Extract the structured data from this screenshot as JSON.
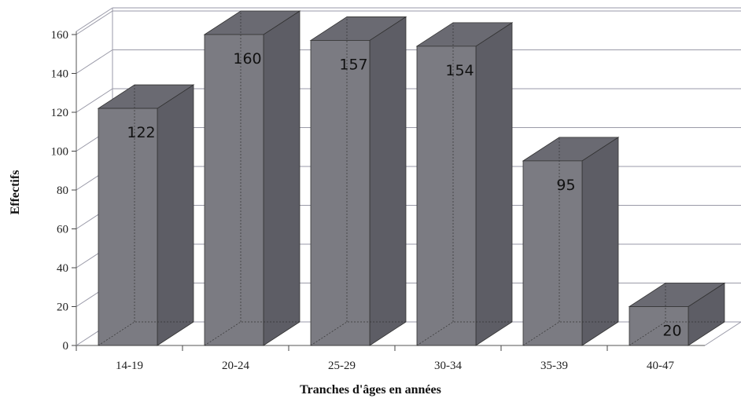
{
  "chart_data": {
    "type": "bar",
    "categories": [
      "14-19",
      "20-24",
      "25-29",
      "30-34",
      "35-39",
      "40-47"
    ],
    "values": [
      122,
      160,
      157,
      154,
      95,
      20
    ],
    "data_labels": [
      "122",
      "160",
      "157",
      "154",
      "95",
      "20"
    ],
    "xlabel": "Tranches d'âges en années",
    "ylabel": "Effectifs",
    "ylim": [
      0,
      160
    ],
    "yticks": [
      0,
      20,
      40,
      60,
      80,
      100,
      120,
      140,
      160
    ],
    "grid": true,
    "style": "3d",
    "colors": {
      "bar_front": "#7b7b82",
      "bar_top": "#6a6a72",
      "bar_side": "#5d5d65",
      "grid": "#9a9aa8"
    }
  }
}
